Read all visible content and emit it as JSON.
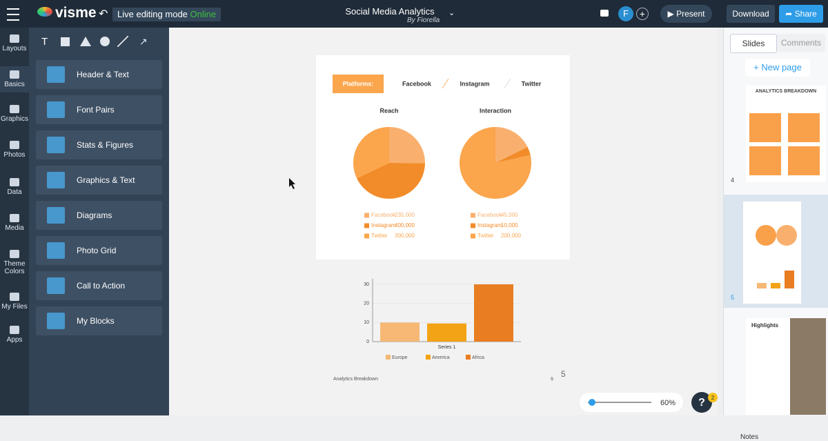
{
  "topbar": {
    "logo": "visme",
    "mode": "Live editing mode",
    "status": "Online",
    "title": "Social Media Analytics",
    "author": "By Fiorella",
    "avatar": "F",
    "present": "Present",
    "download": "Download",
    "share": "Share"
  },
  "rail": [
    "Layouts",
    "Basics",
    "Graphics",
    "Photos",
    "Data",
    "Media",
    "Theme Colors",
    "My Files",
    "Apps"
  ],
  "panel": {
    "text_tool": "T",
    "items": [
      "Header & Text",
      "Font Pairs",
      "Stats & Figures",
      "Graphics & Text",
      "Diagrams",
      "Photo Grid",
      "Call to Action",
      "My Blocks"
    ]
  },
  "slide": {
    "tab_label": "Platforms:",
    "tabs": [
      "Facebook",
      "Instagram",
      "Twitter"
    ],
    "footer": "Analytics Breakdown",
    "page_mark": "s",
    "page_number": "5"
  },
  "zoom": {
    "value": "60%",
    "help": "?",
    "badge": "2"
  },
  "sidebar": {
    "tabs": [
      "Slides",
      "Comments"
    ],
    "new_page": "New page",
    "thumb_title": "ANALYTICS BREAKDOWN",
    "thumb_highlights": "Highlights",
    "numbers": [
      "4",
      "5"
    ],
    "notes": "Notes"
  },
  "chart_data": [
    {
      "type": "pie",
      "title": "Reach",
      "categories": [
        "Facebook",
        "Instagram",
        "Twitter"
      ],
      "values": [
        235000,
        400000,
        300000
      ],
      "value_labels": [
        "235,000",
        "400,000",
        "300,000"
      ],
      "colors": [
        "#f9b06e",
        "#f28c2a",
        "#fba54c"
      ]
    },
    {
      "type": "pie",
      "title": "Interaction",
      "categories": [
        "Facebook",
        "Instagram",
        "Twitter"
      ],
      "values": [
        45000,
        10000,
        200000
      ],
      "value_labels": [
        "45,000",
        "10,000",
        "200,000"
      ],
      "colors": [
        "#f9b06e",
        "#f28c2a",
        "#fba54c"
      ]
    },
    {
      "type": "bar",
      "categories": [
        "Series 1"
      ],
      "series": [
        {
          "name": "Europe",
          "color": "#f6b874",
          "values": [
            10
          ]
        },
        {
          "name": "America",
          "color": "#f3a316",
          "values": [
            9.5
          ]
        },
        {
          "name": "Africa",
          "color": "#e87d22",
          "values": [
            30
          ]
        }
      ],
      "ylim": [
        0,
        33
      ],
      "yticks": [
        0,
        10,
        20,
        30
      ],
      "grid": true
    }
  ]
}
